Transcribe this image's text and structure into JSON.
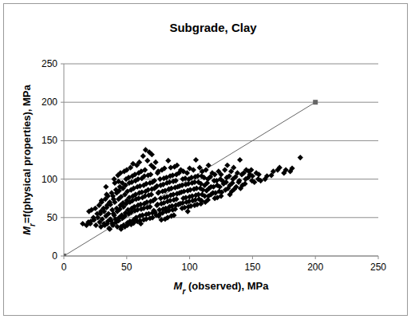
{
  "chart_data": {
    "type": "scatter",
    "title": "Subgrade, Clay",
    "x_label": "Mr (observed), MPa",
    "y_label": "Mr=f(physical properties), MPa",
    "xlim": [
      0,
      250
    ],
    "ylim": [
      0,
      250
    ],
    "xticks": [
      0,
      50,
      100,
      150,
      200,
      250
    ],
    "yticks": [
      0,
      50,
      100,
      150,
      200,
      250
    ],
    "grid": true,
    "series": [
      {
        "type": "scatter",
        "marker": "diamond",
        "color": "#000000",
        "x": [
          15,
          18,
          19.5,
          20,
          21.5,
          22,
          23.5,
          21,
          25,
          26.5,
          24,
          25.5,
          28,
          29.5,
          27,
          28.5,
          30,
          30,
          31.5,
          29,
          30.5,
          32,
          29.5,
          33,
          34.5,
          32,
          33.5,
          35,
          32.5,
          34,
          35,
          36.5,
          34,
          35.5,
          37,
          34.5,
          36,
          33.5,
          38,
          39.5,
          37,
          38.5,
          40,
          37.5,
          39,
          36.5,
          40.5,
          40,
          41.5,
          39,
          40.5,
          42,
          39.5,
          41,
          38.5,
          42.5,
          43,
          44.5,
          42,
          43.5,
          45,
          42.5,
          44,
          41.5,
          45.5,
          43.5,
          45,
          46.5,
          44,
          45.5,
          47,
          44.5,
          46,
          43.5,
          47.5,
          45.5,
          48,
          49.5,
          47,
          48.5,
          50,
          47.5,
          49,
          46.5,
          50.5,
          48.5,
          50,
          51.5,
          49,
          50.5,
          52,
          49.5,
          51,
          48.5,
          52.5,
          50.5,
          53,
          54.5,
          52,
          53.5,
          55,
          52.5,
          54,
          51.5,
          55.5,
          53.5,
          55,
          56.5,
          54,
          55.5,
          57,
          54.5,
          56,
          53.5,
          57.5,
          55.5,
          58,
          59.5,
          57,
          58.5,
          60,
          57.5,
          59,
          56.5,
          60.5,
          58.5,
          60,
          61.5,
          59,
          60.5,
          62,
          59.5,
          61,
          58.5,
          62.5,
          60.5,
          61.2,
          63,
          64.5,
          62,
          63.5,
          65,
          62.5,
          64,
          61.5,
          65.5,
          63.5,
          65,
          66.5,
          64,
          65.5,
          67,
          64.5,
          66,
          63.5,
          67.5,
          65.5,
          68,
          69.5,
          67,
          68.5,
          70,
          67.5,
          69,
          66.5,
          70.5,
          68.5,
          70,
          71.5,
          69,
          70.5,
          72,
          69.5,
          71,
          68.5,
          72.5,
          70.5,
          73,
          74.5,
          72,
          73.5,
          75,
          72.5,
          74,
          71.5,
          75.5,
          75,
          76.5,
          74,
          75.5,
          77,
          74.5,
          76,
          73.5,
          77.5,
          78,
          79.5,
          77,
          78.5,
          80,
          77.5,
          79,
          76.5,
          80.5,
          80,
          81.5,
          79,
          80.5,
          82,
          79.5,
          81,
          78.5,
          82.5,
          83,
          84.5,
          82,
          83.5,
          85,
          82.5,
          84,
          81.5,
          85.5,
          85,
          86.5,
          84,
          85.5,
          87,
          84.5,
          86,
          83.5,
          87.5,
          88,
          89.5,
          87,
          88.5,
          90,
          87.5,
          89,
          86.5,
          90,
          91.5,
          89,
          90.5,
          92,
          89.5,
          91,
          88.5,
          93,
          94.5,
          92,
          93.5,
          95,
          92.5,
          94,
          95,
          96.5,
          94,
          95.5,
          97,
          94.5,
          96,
          98,
          99.5,
          97,
          98.5,
          100,
          97.5,
          99,
          100,
          101.5,
          99,
          100.5,
          102,
          99.5,
          101,
          98.5,
          103,
          104.5,
          102,
          103.5,
          105,
          102.5,
          104,
          105,
          106.5,
          104,
          105.5,
          107,
          104.5,
          106,
          108,
          109.5,
          107,
          108.5,
          110,
          107.5,
          109,
          110,
          111.5,
          109,
          110.5,
          112,
          109.5,
          113,
          114.5,
          112,
          113.5,
          115,
          112.5,
          115,
          116.5,
          114,
          115.5,
          117,
          114.5,
          118,
          119.5,
          117,
          118.5,
          120,
          120,
          121.5,
          119,
          120.5,
          122,
          123,
          124.5,
          122,
          123.5,
          125,
          125,
          126.5,
          124,
          125.5,
          128,
          129.5,
          127,
          128.5,
          130,
          131.5,
          129,
          130.5,
          132,
          133,
          134.5,
          132,
          133.5,
          135,
          136.5,
          134,
          135.5,
          138,
          139.5,
          137,
          140,
          141.5,
          139,
          140.5,
          143,
          144.5,
          142,
          145,
          146.5,
          144,
          148,
          149.5,
          147,
          150,
          151.5,
          149,
          153,
          154.5,
          155,
          156.5,
          160,
          161.5,
          165,
          166.5,
          170,
          171.5,
          175,
          176.5,
          180,
          181.5,
          188
        ],
        "values": [
          42,
          40,
          44,
          58,
          45,
          60,
          50,
          42,
          62,
          55,
          47,
          40,
          66,
          58,
          50,
          44,
          72,
          70,
          62,
          55,
          48,
          42,
          38,
          74,
          66,
          58,
          52,
          45,
          40,
          80,
          78,
          70,
          63,
          55,
          48,
          42,
          36,
          90,
          82,
          74,
          67,
          60,
          53,
          46,
          40,
          35,
          95,
          100,
          86,
          78,
          70,
          62,
          55,
          48,
          42,
          38,
          105,
          90,
          82,
          74,
          66,
          58,
          50,
          44,
          38,
          97,
          108,
          95,
          85,
          77,
          69,
          61,
          53,
          46,
          40,
          35,
          110,
          100,
          88,
          80,
          72,
          64,
          56,
          49,
          43,
          38,
          112,
          102,
          92,
          84,
          76,
          68,
          60,
          52,
          45,
          40,
          115,
          104,
          95,
          86,
          78,
          70,
          62,
          55,
          47,
          41,
          120,
          106,
          96,
          88,
          80,
          72,
          64,
          57,
          50,
          43,
          118,
          108,
          98,
          90,
          82,
          74,
          66,
          59,
          52,
          45,
          122,
          110,
          100,
          91,
          83,
          75,
          67,
          60,
          53,
          46,
          42,
          130,
          112,
          101,
          92,
          84,
          76,
          68,
          61,
          54,
          47,
          138,
          124,
          104,
          94,
          86,
          78,
          70,
          62,
          55,
          48,
          135,
          118,
          105,
          95,
          87,
          79,
          71,
          63,
          56,
          49,
          132,
          115,
          106,
          96,
          88,
          80,
          72,
          64,
          57,
          50,
          122,
          108,
          98,
          90,
          82,
          74,
          66,
          59,
          52,
          110,
          100,
          91,
          83,
          75,
          67,
          60,
          53,
          47,
          112,
          101,
          92,
          84,
          76,
          68,
          61,
          55,
          48,
          114,
          102,
          93,
          85,
          77,
          69,
          62,
          56,
          50,
          124,
          104,
          95,
          87,
          79,
          71,
          64,
          58,
          52,
          115,
          105,
          96,
          88,
          80,
          72,
          65,
          59,
          53,
          116,
          106,
          97,
          89,
          81,
          73,
          66,
          60,
          118,
          108,
          98,
          90,
          82,
          74,
          67,
          61,
          112,
          100,
          91,
          83,
          75,
          68,
          62,
          110,
          101,
          92,
          84,
          76,
          69,
          63,
          108,
          100,
          93,
          85,
          77,
          70,
          64,
          114,
          102,
          94,
          86,
          78,
          71,
          65,
          58,
          112,
          103,
          95,
          87,
          79,
          72,
          66,
          125,
          104,
          96,
          88,
          80,
          73,
          67,
          115,
          104,
          96,
          88,
          80,
          74,
          68,
          110,
          102,
          94,
          86,
          78,
          72,
          112,
          100,
          92,
          85,
          78,
          70,
          118,
          103,
          95,
          88,
          80,
          73,
          108,
          98,
          90,
          82,
          75,
          106,
          98,
          90,
          82,
          76,
          110,
          100,
          92,
          84,
          78,
          106,
          97,
          90,
          83,
          112,
          102,
          94,
          86,
          118,
          104,
          96,
          88,
          80,
          110,
          100,
          92,
          84,
          115,
          103,
          95,
          87,
          108,
          98,
          90,
          125,
          106,
          96,
          88,
          108,
          100,
          92,
          112,
          102,
          94,
          106,
          98,
          110,
          104,
          96,
          112,
          108,
          100,
          106,
          98,
          100,
          104,
          105,
          110,
          112,
          115,
          108,
          112,
          110,
          114,
          128
        ]
      },
      {
        "type": "line",
        "marker": "square",
        "line_style": "solid",
        "color": "#666666",
        "x": [
          0,
          200
        ],
        "values": [
          0,
          200
        ]
      }
    ]
  }
}
